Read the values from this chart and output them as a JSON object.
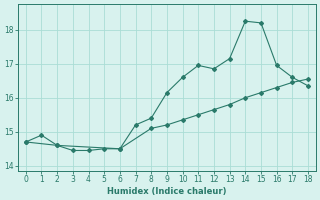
{
  "xlabel": "Humidex (Indice chaleur)",
  "line1_x": [
    0,
    1,
    2,
    3,
    4,
    5,
    6,
    7,
    8,
    9,
    10,
    11,
    12,
    13,
    14,
    15,
    16,
    17,
    18
  ],
  "line1_y": [
    14.7,
    14.9,
    14.6,
    14.45,
    14.45,
    14.5,
    14.5,
    15.2,
    15.4,
    16.15,
    16.6,
    16.95,
    16.85,
    17.15,
    18.25,
    18.2,
    16.95,
    16.6,
    16.35
  ],
  "line2_x": [
    0,
    2,
    6,
    8,
    9,
    10,
    11,
    12,
    13,
    14,
    15,
    16,
    17,
    18
  ],
  "line2_y": [
    14.7,
    14.6,
    14.5,
    15.1,
    15.2,
    15.35,
    15.5,
    15.65,
    15.8,
    16.0,
    16.15,
    16.3,
    16.45,
    16.55
  ],
  "line_color": "#2a7a6a",
  "bg_color": "#d8f2ee",
  "grid_color": "#aaddd5",
  "xlim": [
    -0.5,
    18.5
  ],
  "ylim": [
    13.85,
    18.75
  ],
  "xticks": [
    0,
    1,
    2,
    3,
    4,
    5,
    6,
    7,
    8,
    9,
    10,
    11,
    12,
    13,
    14,
    15,
    16,
    17,
    18
  ],
  "yticks": [
    14,
    15,
    16,
    17,
    18
  ]
}
